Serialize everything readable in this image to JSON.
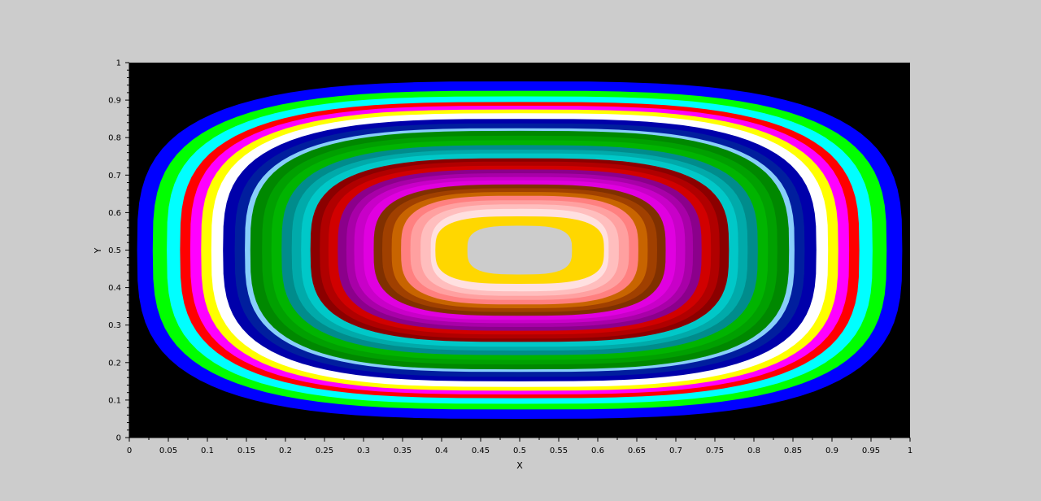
{
  "chart_data": {
    "type": "contour",
    "title": "",
    "xlabel": "X",
    "ylabel": "Y",
    "xlim": [
      0,
      1
    ],
    "ylim": [
      0,
      1
    ],
    "x_ticks": [
      "0",
      "0.05",
      "0.1",
      "0.15",
      "0.2",
      "0.25",
      "0.3",
      "0.35",
      "0.4",
      "0.45",
      "0.5",
      "0.55",
      "0.6",
      "0.65",
      "0.7",
      "0.75",
      "0.8",
      "0.85",
      "0.9",
      "0.95",
      "1"
    ],
    "y_ticks": [
      "0",
      "0.1",
      "0.2",
      "0.3",
      "0.4",
      "0.5",
      "0.6",
      "0.7",
      "0.8",
      "0.9",
      "1"
    ],
    "background_color": "#000000",
    "center": [
      0.5,
      0.5
    ],
    "levels": [
      {
        "color": "#0000ff",
        "rx": 0.49,
        "ry": 0.45
      },
      {
        "color": "#00ff00",
        "rx": 0.47,
        "ry": 0.425
      },
      {
        "color": "#00ffff",
        "rx": 0.452,
        "ry": 0.41
      },
      {
        "color": "#ff0000",
        "rx": 0.435,
        "ry": 0.395
      },
      {
        "color": "#ff00ff",
        "rx": 0.422,
        "ry": 0.385
      },
      {
        "color": "#ffff00",
        "rx": 0.408,
        "ry": 0.375
      },
      {
        "color": "#ffffff",
        "rx": 0.395,
        "ry": 0.365
      },
      {
        "color": "#0000aa",
        "rx": 0.38,
        "ry": 0.35
      },
      {
        "color": "#001e9e",
        "rx": 0.365,
        "ry": 0.338
      },
      {
        "color": "#87cefa",
        "rx": 0.352,
        "ry": 0.325
      },
      {
        "color": "#008800",
        "rx": 0.345,
        "ry": 0.318
      },
      {
        "color": "#00a000",
        "rx": 0.33,
        "ry": 0.305
      },
      {
        "color": "#00b400",
        "rx": 0.318,
        "ry": 0.293
      },
      {
        "color": "#008c8c",
        "rx": 0.305,
        "ry": 0.28
      },
      {
        "color": "#00aaaa",
        "rx": 0.292,
        "ry": 0.268
      },
      {
        "color": "#00c8c8",
        "rx": 0.28,
        "ry": 0.258
      },
      {
        "color": "#8b0000",
        "rx": 0.268,
        "ry": 0.245
      },
      {
        "color": "#b00000",
        "rx": 0.256,
        "ry": 0.236
      },
      {
        "color": "#d10000",
        "rx": 0.245,
        "ry": 0.225
      },
      {
        "color": "#8b008b",
        "rx": 0.233,
        "ry": 0.215
      },
      {
        "color": "#a800a8",
        "rx": 0.222,
        "ry": 0.205
      },
      {
        "color": "#c800c8",
        "rx": 0.212,
        "ry": 0.195
      },
      {
        "color": "#e000e0",
        "rx": 0.2,
        "ry": 0.186
      },
      {
        "color": "#803000",
        "rx": 0.187,
        "ry": 0.175
      },
      {
        "color": "#a04000",
        "rx": 0.176,
        "ry": 0.165
      },
      {
        "color": "#c86400",
        "rx": 0.164,
        "ry": 0.155
      },
      {
        "color": "#ff8080",
        "rx": 0.152,
        "ry": 0.145
      },
      {
        "color": "#ffa0a0",
        "rx": 0.14,
        "ry": 0.133
      },
      {
        "color": "#ffbebe",
        "rx": 0.127,
        "ry": 0.122
      },
      {
        "color": "#ffe0e0",
        "rx": 0.114,
        "ry": 0.11
      },
      {
        "color": "#ffd700",
        "rx": 0.108,
        "ry": 0.09
      },
      {
        "color": "#cccccc",
        "rx": 0.067,
        "ry": 0.065
      }
    ]
  }
}
